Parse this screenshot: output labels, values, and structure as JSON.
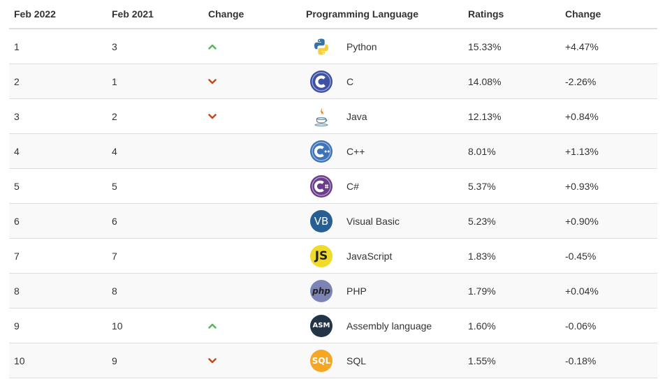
{
  "table": {
    "headers": {
      "current": "Feb 2022",
      "previous": "Feb 2021",
      "change": "Change",
      "language": "Programming Language",
      "ratings": "Ratings",
      "delta": "Change"
    },
    "rows": [
      {
        "current": "1",
        "previous": "3",
        "trend": "up",
        "icon": "python-logo-icon",
        "language": "Python",
        "ratings": "15.33%",
        "delta": "+4.47%"
      },
      {
        "current": "2",
        "previous": "1",
        "trend": "down",
        "icon": "c-logo-icon",
        "language": "C",
        "ratings": "14.08%",
        "delta": "-2.26%"
      },
      {
        "current": "3",
        "previous": "2",
        "trend": "down",
        "icon": "java-logo-icon",
        "language": "Java",
        "ratings": "12.13%",
        "delta": "+0.84%"
      },
      {
        "current": "4",
        "previous": "4",
        "trend": "none",
        "icon": "cpp-logo-icon",
        "language": "C++",
        "ratings": "8.01%",
        "delta": "+1.13%"
      },
      {
        "current": "5",
        "previous": "5",
        "trend": "none",
        "icon": "csharp-logo-icon",
        "language": "C#",
        "ratings": "5.37%",
        "delta": "+0.93%"
      },
      {
        "current": "6",
        "previous": "6",
        "trend": "none",
        "icon": "visual-basic-logo-icon",
        "icon_text": "VB",
        "language": "Visual Basic",
        "ratings": "5.23%",
        "delta": "+0.90%"
      },
      {
        "current": "7",
        "previous": "7",
        "trend": "none",
        "icon": "javascript-logo-icon",
        "icon_text": "JS",
        "language": "JavaScript",
        "ratings": "1.83%",
        "delta": "-0.45%"
      },
      {
        "current": "8",
        "previous": "8",
        "trend": "none",
        "icon": "php-logo-icon",
        "icon_text": "php",
        "language": "PHP",
        "ratings": "1.79%",
        "delta": "+0.04%"
      },
      {
        "current": "9",
        "previous": "10",
        "trend": "up",
        "icon": "assembly-logo-icon",
        "icon_text": "ASM",
        "language": "Assembly language",
        "ratings": "1.60%",
        "delta": "-0.06%"
      },
      {
        "current": "10",
        "previous": "9",
        "trend": "down",
        "icon": "sql-logo-icon",
        "icon_text": "SQL",
        "language": "SQL",
        "ratings": "1.55%",
        "delta": "-0.18%"
      }
    ]
  },
  "colors": {
    "up": "#5cb85c",
    "down": "#c9491e",
    "text": "#333333",
    "border": "#dddddd",
    "stripe": "#f9f9f9"
  }
}
